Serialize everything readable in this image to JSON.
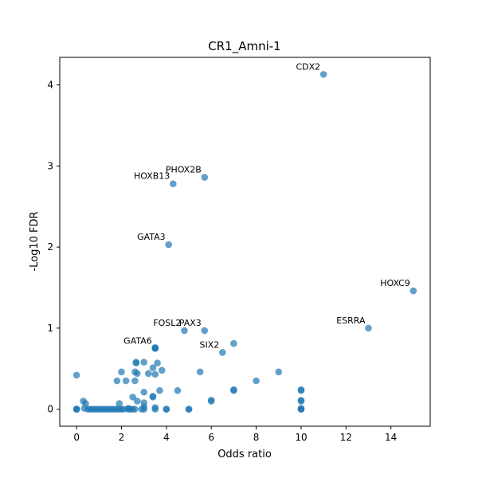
{
  "chart_data": {
    "type": "scatter",
    "title": "CR1_Amni-1",
    "xlabel": "Odds ratio",
    "ylabel": "-Log10 FDR",
    "xlim": [
      -0.75,
      15.75
    ],
    "ylim": [
      -0.21,
      4.34
    ],
    "xticks": [
      0,
      2,
      4,
      6,
      8,
      10,
      12,
      14
    ],
    "yticks": [
      0,
      1,
      2,
      3,
      4
    ],
    "grid": false,
    "point_color": "#1f77b4",
    "points": [
      {
        "x": 0,
        "y": 0.42
      },
      {
        "x": 0,
        "y": 0
      },
      {
        "x": 0,
        "y": 0
      },
      {
        "x": 0,
        "y": 0
      },
      {
        "x": 0.3,
        "y": 0.1
      },
      {
        "x": 0.4,
        "y": 0.07
      },
      {
        "x": 0.35,
        "y": 0.01
      },
      {
        "x": 0.5,
        "y": 0
      },
      {
        "x": 0.6,
        "y": 0
      },
      {
        "x": 0.7,
        "y": 0
      },
      {
        "x": 0.8,
        "y": 0
      },
      {
        "x": 0.9,
        "y": 0
      },
      {
        "x": 1.0,
        "y": 0
      },
      {
        "x": 1.1,
        "y": 0
      },
      {
        "x": 1.2,
        "y": 0
      },
      {
        "x": 1.3,
        "y": 0
      },
      {
        "x": 1.4,
        "y": 0
      },
      {
        "x": 1.5,
        "y": 0
      },
      {
        "x": 1.6,
        "y": 0
      },
      {
        "x": 1.7,
        "y": 0
      },
      {
        "x": 1.8,
        "y": 0
      },
      {
        "x": 1.9,
        "y": 0
      },
      {
        "x": 2.0,
        "y": 0
      },
      {
        "x": 2.1,
        "y": 0
      },
      {
        "x": 2.3,
        "y": 0
      },
      {
        "x": 2.4,
        "y": 0
      },
      {
        "x": 2.5,
        "y": 0
      },
      {
        "x": 2.6,
        "y": 0
      },
      {
        "x": 2.9,
        "y": 0
      },
      {
        "x": 3.0,
        "y": 0
      },
      {
        "x": 3.5,
        "y": 0
      },
      {
        "x": 3.5,
        "y": 0.02
      },
      {
        "x": 4.0,
        "y": 0
      },
      {
        "x": 4.0,
        "y": 0
      },
      {
        "x": 5.0,
        "y": 0
      },
      {
        "x": 5.0,
        "y": 0
      },
      {
        "x": 1.8,
        "y": 0.35
      },
      {
        "x": 2.0,
        "y": 0.46
      },
      {
        "x": 2.2,
        "y": 0.35
      },
      {
        "x": 1.9,
        "y": 0.07
      },
      {
        "x": 2.3,
        "y": 0.01
      },
      {
        "x": 2.5,
        "y": 0.15
      },
      {
        "x": 2.6,
        "y": 0.35
      },
      {
        "x": 2.6,
        "y": 0.46
      },
      {
        "x": 2.7,
        "y": 0.1
      },
      {
        "x": 2.7,
        "y": 0.44
      },
      {
        "x": 2.65,
        "y": 0.57
      },
      {
        "x": 2.65,
        "y": 0.58
      },
      {
        "x": 3.0,
        "y": 0.58
      },
      {
        "x": 3.0,
        "y": 0.21
      },
      {
        "x": 3.0,
        "y": 0.08
      },
      {
        "x": 3.0,
        "y": 0.03
      },
      {
        "x": 3.2,
        "y": 0.44
      },
      {
        "x": 3.4,
        "y": 0.51
      },
      {
        "x": 3.4,
        "y": 0.15
      },
      {
        "x": 3.4,
        "y": 0.16
      },
      {
        "x": 3.5,
        "y": 0.43
      },
      {
        "x": 3.5,
        "y": 0.75
      },
      {
        "x": 3.5,
        "y": 0.76
      },
      {
        "x": 3.6,
        "y": 0.57
      },
      {
        "x": 3.7,
        "y": 0.23
      },
      {
        "x": 3.8,
        "y": 0.48
      },
      {
        "x": 4.5,
        "y": 0.23
      },
      {
        "x": 5.5,
        "y": 0.46
      },
      {
        "x": 6.0,
        "y": 0.1
      },
      {
        "x": 6.0,
        "y": 0.11
      },
      {
        "x": 7.0,
        "y": 0.23
      },
      {
        "x": 7.0,
        "y": 0.24
      },
      {
        "x": 8.0,
        "y": 0.35
      },
      {
        "x": 9.0,
        "y": 0.46
      },
      {
        "x": 10.0,
        "y": 0.23
      },
      {
        "x": 10.0,
        "y": 0.24
      },
      {
        "x": 10.0,
        "y": 0.1
      },
      {
        "x": 10.0,
        "y": 0.11
      },
      {
        "x": 10.0,
        "y": 0.01
      },
      {
        "x": 10.0,
        "y": 0
      },
      {
        "x": 10.0,
        "y": 0
      },
      {
        "x": 7.0,
        "y": 0.81
      }
    ],
    "annotations": [
      {
        "label": "CDX2",
        "x": 11.0,
        "y": 4.13
      },
      {
        "label": "PHOX2B",
        "x": 5.7,
        "y": 2.86
      },
      {
        "label": "HOXB13",
        "x": 4.3,
        "y": 2.78
      },
      {
        "label": "GATA3",
        "x": 4.1,
        "y": 2.03
      },
      {
        "label": "HOXC9",
        "x": 15.0,
        "y": 1.46
      },
      {
        "label": "ESRRA",
        "x": 13.0,
        "y": 1.0
      },
      {
        "label": "FOSL2",
        "x": 4.8,
        "y": 0.97
      },
      {
        "label": "PAX3",
        "x": 5.7,
        "y": 0.97
      },
      {
        "label": "GATA6",
        "x": 3.5,
        "y": 0.75
      },
      {
        "label": "SIX2",
        "x": 6.5,
        "y": 0.7
      }
    ]
  }
}
